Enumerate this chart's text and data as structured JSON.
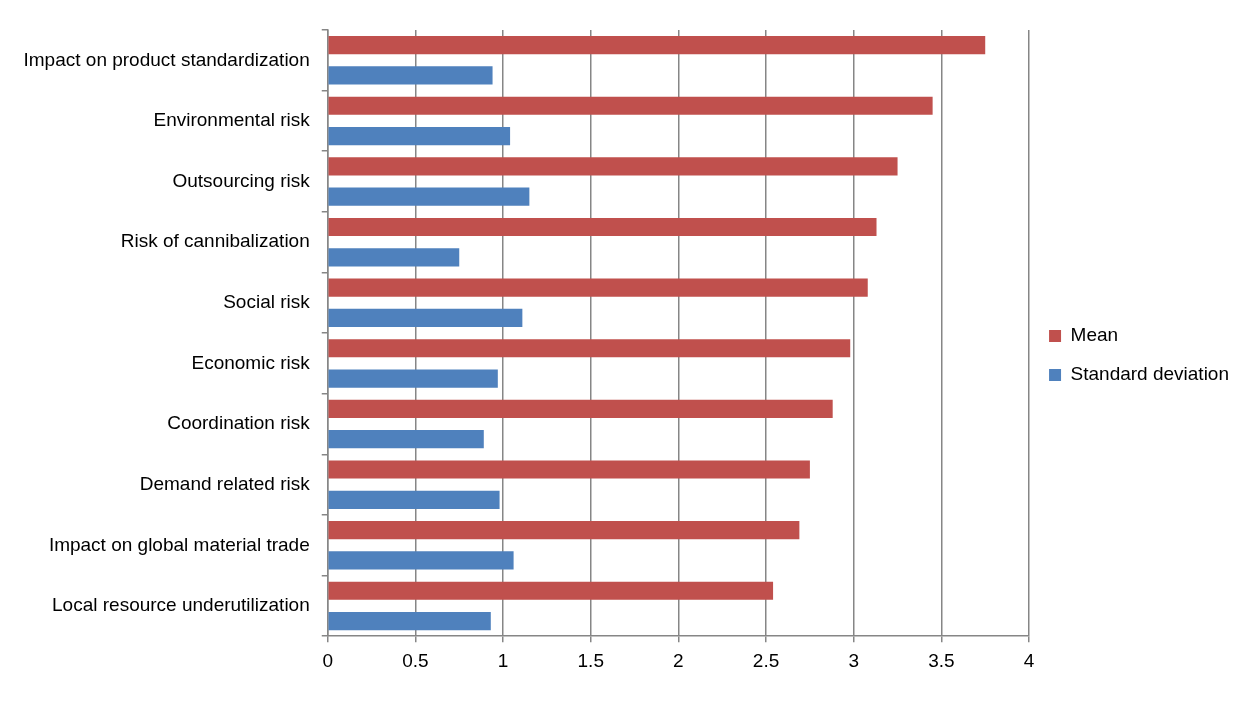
{
  "chart_data": {
    "type": "bar",
    "orientation": "horizontal",
    "categories": [
      "Impact on product standardization",
      "Environmental risk",
      "Outsourcing risk",
      "Risk of cannibalization",
      "Social risk",
      "Economic risk",
      "Coordination risk",
      "Demand related risk",
      "Impact on global material trade",
      "Local resource underutilization"
    ],
    "series": [
      {
        "name": "Mean",
        "color": "#c0504d",
        "values": [
          3.75,
          3.45,
          3.25,
          3.13,
          3.08,
          2.98,
          2.88,
          2.75,
          2.69,
          2.54
        ]
      },
      {
        "name": "Standard deviation",
        "color": "#4f81bd",
        "values": [
          0.94,
          1.04,
          1.15,
          0.75,
          1.11,
          0.97,
          0.89,
          0.98,
          1.06,
          0.93
        ]
      }
    ],
    "xlim": [
      0,
      4
    ],
    "xticks": [
      0,
      0.5,
      1,
      1.5,
      2,
      2.5,
      3,
      3.5,
      4
    ],
    "grid": "x",
    "legend": "right"
  }
}
